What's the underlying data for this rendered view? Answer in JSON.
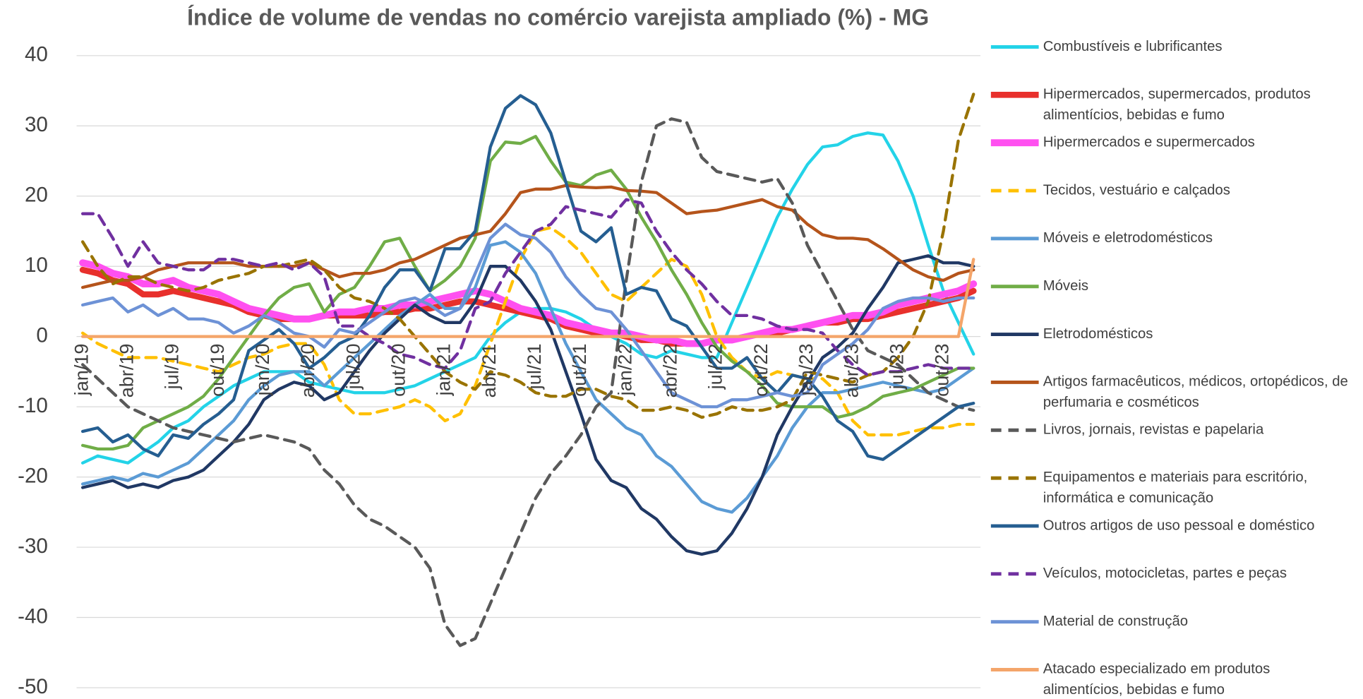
{
  "chart_data": {
    "type": "line",
    "title": "Índice de volume de vendas no comércio varejista ampliado (%) - MG",
    "categories": [
      "jan/19",
      null,
      null,
      "abr/19",
      null,
      null,
      "jul/19",
      null,
      null,
      "out/19",
      null,
      null,
      "jan/20",
      null,
      null,
      "abr/20",
      null,
      null,
      "jul/20",
      null,
      null,
      "out/20",
      null,
      null,
      "jan/21",
      null,
      null,
      "abr/21",
      null,
      null,
      "jul/21",
      null,
      null,
      "out/21",
      null,
      null,
      "jan/22",
      null,
      null,
      "abr/22",
      null,
      null,
      "jul/22",
      null,
      null,
      "out/22",
      null,
      null,
      "jan/23",
      null,
      null,
      "abr/23",
      null,
      null,
      "jul/23",
      null,
      null,
      "out/23",
      null,
      null
    ],
    "ylim": [
      -50,
      40
    ],
    "yticks": [
      -50,
      -40,
      -30,
      -20,
      -10,
      0,
      10,
      20,
      30,
      40
    ],
    "grid": true,
    "legend": "right",
    "series": [
      {
        "name": "Combustíveis e lubrificantes",
        "color": "#23d3e8",
        "style": "solid",
        "values": [
          -18,
          -17,
          -17.5,
          -18,
          -16.5,
          -15,
          -13,
          -12,
          -10,
          -8.5,
          -7,
          -6,
          -5,
          -5,
          -5,
          -6.5,
          -7,
          -7.5,
          -8,
          -8,
          -8,
          -7.5,
          -7,
          -6,
          -5,
          -4,
          -3,
          0,
          2,
          3.5,
          4,
          4,
          3.5,
          2.5,
          1,
          0,
          -1,
          -2.5,
          -3,
          -2,
          -2.5,
          -3,
          -3,
          2,
          7,
          12,
          17,
          21,
          24.5,
          27,
          27.3,
          28.5,
          29,
          28.7,
          25,
          20,
          13,
          6.5,
          2,
          -2.5
        ]
      },
      {
        "name": "Hipermercados, supermercados, produtos alimentícios, bebidas e fumo",
        "color": "#e8302c",
        "style": "solid",
        "values": [
          9.5,
          9,
          8,
          7.5,
          6,
          6,
          6.5,
          6,
          5.5,
          5,
          4.5,
          3.5,
          3,
          2.5,
          2.5,
          2.5,
          3,
          3,
          3,
          3,
          3.5,
          3.5,
          4,
          4,
          4.5,
          5,
          5,
          4.5,
          4,
          3.5,
          3,
          2.5,
          1.5,
          1,
          0.5,
          0.5,
          0,
          -0.5,
          -0.5,
          -1,
          -1,
          -1,
          -0.5,
          -0.5,
          0,
          0.5,
          0.5,
          1,
          1.5,
          2,
          2,
          2.5,
          2.5,
          3,
          3.5,
          4,
          4.5,
          5,
          5.5,
          6.5
        ]
      },
      {
        "name": "Hipermercados e supermercados",
        "color": "#ff50f0",
        "style": "solid",
        "values": [
          10.5,
          10,
          9,
          8.5,
          7.5,
          7.5,
          8,
          7,
          6.5,
          6,
          5,
          4,
          3.5,
          3,
          2.5,
          2.5,
          3,
          3.5,
          3.5,
          4,
          4,
          4.5,
          4.5,
          5,
          5.5,
          6,
          6.5,
          6,
          5,
          4,
          3.5,
          3,
          2,
          1.5,
          1,
          0.5,
          0.5,
          0,
          -0.5,
          -0.5,
          -1,
          -1,
          -0.5,
          -0.5,
          0,
          0.5,
          1,
          1,
          1.5,
          2,
          2.5,
          3,
          3,
          3.5,
          4.5,
          5,
          5.5,
          6,
          6.5,
          7.5
        ]
      },
      {
        "name": "Tecidos, vestuário e calçados",
        "color": "#ffc000",
        "style": "dashed",
        "values": [
          0.5,
          -1,
          -2,
          -3,
          -3,
          -3,
          -3.5,
          -4,
          -4.5,
          -5,
          -4,
          -3,
          -2.5,
          -1.5,
          -1,
          -1,
          -4,
          -9,
          -11,
          -11,
          -10.5,
          -10,
          -9,
          -10,
          -12,
          -11,
          -7,
          -1,
          5,
          11,
          15,
          15.5,
          14,
          12,
          9,
          6,
          5,
          7,
          9,
          11,
          10,
          6,
          0,
          -3,
          -5,
          -6,
          -5,
          -5.5,
          -6,
          -6,
          -8,
          -12,
          -14,
          -14,
          -14,
          -13.5,
          -13,
          -13,
          -12.5,
          -12.5
        ]
      },
      {
        "name": "Móveis e eletrodomésticos",
        "color": "#5b9bd5",
        "style": "solid",
        "values": [
          -21,
          -20.5,
          -20,
          -20.5,
          -19.5,
          -20,
          -19,
          -18,
          -16,
          -14,
          -12,
          -9,
          -7,
          -5.5,
          -5,
          -5,
          -7,
          -5,
          -3,
          -1,
          1,
          3,
          4.5,
          6,
          4,
          4,
          7,
          13,
          13.5,
          12,
          9,
          4,
          -1,
          -5,
          -9,
          -11,
          -13,
          -14,
          -17,
          -18.5,
          -21,
          -23.5,
          -24.5,
          -25,
          -23,
          -20,
          -17,
          -13,
          -10,
          -8,
          -8,
          -7.5,
          -7,
          -6.5,
          -7,
          -7.5,
          -8,
          -7.5,
          -6,
          -4.5
        ]
      },
      {
        "name": "Móveis",
        "color": "#70ad47",
        "style": "solid",
        "values": [
          -15.5,
          -16,
          -16,
          -15.5,
          -13,
          -12,
          -11,
          -10,
          -8.5,
          -6,
          -3,
          0,
          3,
          5.5,
          7,
          7.5,
          3.5,
          6,
          7,
          10,
          13.5,
          14,
          10,
          6.5,
          8,
          10,
          14,
          25,
          27.7,
          27.5,
          28.5,
          25,
          22,
          21.5,
          23,
          23.7,
          21,
          17,
          13.5,
          9.5,
          6,
          2,
          -1.5,
          -3.5,
          -5,
          -7,
          -9.5,
          -10,
          -10,
          -10,
          -11.5,
          -11,
          -10,
          -8.5,
          -8,
          -7.5,
          -6.5,
          -5.5,
          -4.5,
          -4.5
        ]
      },
      {
        "name": "Eletrodomésticos",
        "color": "#203864",
        "style": "solid",
        "values": [
          -21.5,
          -21,
          -20.5,
          -21.5,
          -21,
          -21.5,
          -20.5,
          -20,
          -19,
          -17,
          -15,
          -12.5,
          -9,
          -7.5,
          -6.5,
          -7,
          -9,
          -8,
          -5,
          -2,
          0.5,
          2.5,
          4.5,
          3,
          2,
          2,
          5,
          10,
          10,
          8,
          5,
          1,
          -5,
          -11,
          -17.5,
          -20.5,
          -21.5,
          -24.5,
          -26,
          -28.5,
          -30.5,
          -31,
          -30.5,
          -28,
          -24.5,
          -20,
          -14,
          -10,
          -6.5,
          -3,
          -1.5,
          0.5,
          4,
          7,
          10.5,
          11,
          11.5,
          10.5,
          10.5,
          10
        ]
      },
      {
        "name": "Artigos farmacêuticos, médicos, ortopédicos, de perfumaria e cosméticos",
        "color": "#b5541b",
        "style": "solid",
        "values": [
          7,
          7.5,
          8,
          8,
          8.5,
          9.5,
          10,
          10.5,
          10.5,
          10.5,
          10.5,
          10,
          10,
          10,
          10,
          10.5,
          9.5,
          8.5,
          9,
          9,
          9.5,
          10.5,
          11,
          12,
          13,
          14,
          14.5,
          15,
          17.5,
          20.5,
          21,
          21,
          21.5,
          21.3,
          21.2,
          21.3,
          20.8,
          20.7,
          20.5,
          19,
          17.5,
          17.8,
          18,
          18.5,
          19,
          19.5,
          18.5,
          18,
          16,
          14.5,
          14,
          14,
          13.8,
          12.5,
          11,
          9.5,
          8.5,
          8,
          9,
          9.5
        ]
      },
      {
        "name": "Livros, jornais, revistas e papelaria",
        "color": "#595959",
        "style": "dashed",
        "values": [
          -4,
          -6,
          -8,
          -10,
          -11,
          -12,
          -13,
          -13.5,
          -14,
          -14.5,
          -15,
          -14.5,
          -14,
          -14.5,
          -15,
          -16,
          -19,
          -21,
          -24,
          -26,
          -27,
          -28.5,
          -30,
          -33,
          -41,
          -44,
          -43,
          -38,
          -33,
          -28,
          -23,
          -19.5,
          -17,
          -14,
          -10,
          -8,
          8,
          22,
          30,
          31,
          30.5,
          25.5,
          23.5,
          23,
          22.5,
          22,
          22.5,
          19,
          13,
          9,
          5,
          1,
          -2,
          -3,
          -4,
          -6,
          -8,
          -9,
          -10,
          -10.5
        ]
      },
      {
        "name": "Equipamentos e materiais para escritório, informática e comunicação",
        "color": "#997300",
        "style": "dashed",
        "values": [
          13.5,
          10,
          7.5,
          8.5,
          8.5,
          7.5,
          7,
          6.5,
          7,
          8,
          8.5,
          9,
          10,
          10,
          10.5,
          11,
          9.5,
          7,
          5.5,
          5,
          4,
          2.5,
          0,
          -2.5,
          -5,
          -6.5,
          -7.5,
          -5,
          -5.5,
          -6.5,
          -8,
          -8.5,
          -8.5,
          -7.5,
          -7.5,
          -8.5,
          -9,
          -10.5,
          -10.5,
          -10,
          -10.5,
          -11.5,
          -11,
          -10,
          -10.5,
          -10.5,
          -10,
          -9,
          -5,
          -5.5,
          -6,
          -6.5,
          -5.5,
          -5,
          -3,
          0,
          5,
          15,
          28,
          34.5
        ]
      },
      {
        "name": "Outros artigos de uso pessoal e doméstico",
        "color": "#255e91",
        "style": "solid",
        "values": [
          -13.5,
          -13,
          -15,
          -14,
          -16,
          -17,
          -14,
          -14.5,
          -12.5,
          -11,
          -9,
          -2,
          -0.5,
          1,
          -1,
          -4.5,
          -3,
          -1,
          0,
          3,
          7,
          9.5,
          9.5,
          6.5,
          12.5,
          12.5,
          15,
          27,
          32.5,
          34.3,
          33,
          29,
          22,
          15,
          13.5,
          15.5,
          6,
          7,
          6.5,
          2.5,
          1.5,
          -1.5,
          -4.5,
          -4.5,
          -3,
          -6,
          -8,
          -5.5,
          -6,
          -8.5,
          -12,
          -13.5,
          -17,
          -17.5,
          -16,
          -14.5,
          -13,
          -11.5,
          -10,
          -9.5
        ]
      },
      {
        "name": "Veículos, motocicletas, partes e peças",
        "color": "#7030a0",
        "style": "dashed",
        "values": [
          17.5,
          17.5,
          14,
          10,
          13.5,
          10.5,
          10,
          9.5,
          9.5,
          11,
          11,
          10.5,
          10,
          10.5,
          9.5,
          10.5,
          8.5,
          1.5,
          1.5,
          0,
          -1,
          -2.5,
          -3,
          -4,
          -4.5,
          -2,
          4,
          5,
          9,
          12,
          15,
          16,
          18.5,
          18,
          17.5,
          17,
          19.5,
          19,
          15,
          12,
          9.5,
          7.5,
          5,
          3,
          3,
          2.5,
          1.5,
          1,
          1,
          0.5,
          -2,
          -4,
          -5.5,
          -5,
          -5,
          -4.5,
          -4,
          -4.5,
          -4.5,
          -4.5
        ]
      },
      {
        "name": "Material de construção",
        "color": "#6d92d6",
        "style": "solid",
        "values": [
          4.5,
          5,
          5.5,
          3.5,
          4.5,
          3,
          4,
          2.5,
          2.5,
          2,
          0.5,
          1.5,
          3,
          2,
          0.5,
          0,
          -1.5,
          1,
          0.5,
          2,
          3.5,
          5,
          5.5,
          4.5,
          3,
          4,
          9,
          14,
          16,
          14.5,
          14,
          12,
          8.5,
          6,
          4,
          3.5,
          1,
          -2,
          -5,
          -8,
          -9,
          -10,
          -10,
          -9,
          -9,
          -8.5,
          -8,
          -8.5,
          -8,
          -4,
          -2.5,
          -1,
          1,
          4,
          5,
          5.5,
          5.5,
          5,
          5.5,
          5.5
        ]
      },
      {
        "name": "Atacado especializado em produtos alimentícios, bebidas e fumo",
        "color": "#f4a56a",
        "style": "solid",
        "values": [
          0,
          0,
          0,
          0,
          0,
          0,
          0,
          0,
          0,
          0,
          0,
          0,
          0,
          0,
          0,
          0,
          0,
          0,
          0,
          0,
          0,
          0,
          0,
          0,
          0,
          0,
          0,
          0,
          0,
          0,
          0,
          0,
          0,
          0,
          0,
          0,
          0,
          0,
          0,
          0,
          0,
          0,
          0,
          0,
          0,
          0,
          0,
          0,
          0,
          0,
          0,
          0,
          0,
          0,
          0,
          0,
          0,
          0,
          0,
          11
        ]
      }
    ]
  }
}
